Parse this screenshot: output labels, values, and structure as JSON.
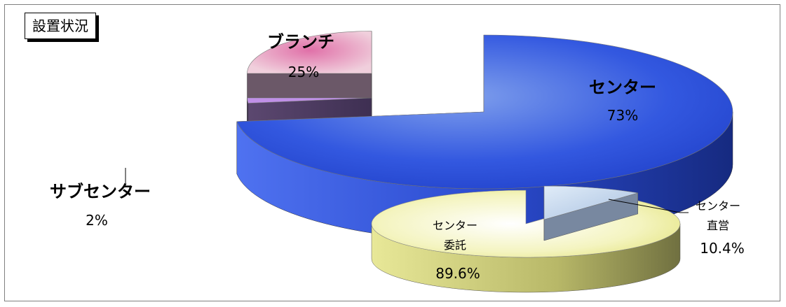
{
  "title": "設置状況",
  "chart_data": [
    {
      "type": "pie",
      "categories": [
        "ブランチ",
        "センター",
        "サブセンター"
      ],
      "values": [
        25,
        73,
        2
      ],
      "value_labels": [
        "25%",
        "73%",
        "2%"
      ],
      "colors": [
        "#e8a8c8",
        "#3a5fe0",
        "#b080e8"
      ]
    },
    {
      "type": "pie",
      "categories": [
        "センター委託",
        "センター直営"
      ],
      "values": [
        89.6,
        10.4
      ],
      "value_labels": [
        "89.6%",
        "10.4%"
      ],
      "category_lines": [
        [
          "センター",
          "委託"
        ],
        [
          "センター",
          "直営"
        ]
      ],
      "colors": [
        "#f0f0a0",
        "#b8cce8"
      ]
    }
  ]
}
